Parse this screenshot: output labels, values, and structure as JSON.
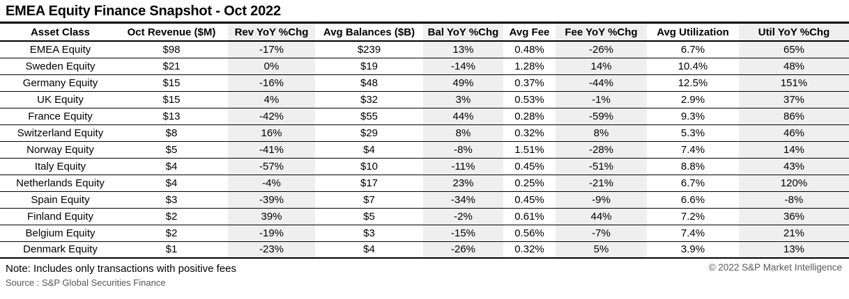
{
  "title": "EMEA Equity Finance Snapshot - Oct 2022",
  "chart_data": {
    "type": "table",
    "title": "EMEA Equity Finance Snapshot - Oct 2022",
    "columns": [
      {
        "label": "Asset Class",
        "shaded": false
      },
      {
        "label": "Oct Revenue ($M)",
        "shaded": false
      },
      {
        "label": "Rev YoY %Chg",
        "shaded": true
      },
      {
        "label": "Avg Balances ($B)",
        "shaded": false
      },
      {
        "label": "Bal YoY %Chg",
        "shaded": true
      },
      {
        "label": "Avg Fee",
        "shaded": false
      },
      {
        "label": "Fee YoY %Chg",
        "shaded": true
      },
      {
        "label": "Avg Utilization",
        "shaded": false
      },
      {
        "label": "Util YoY %Chg",
        "shaded": true
      }
    ],
    "rows": [
      [
        "EMEA Equity",
        "$98",
        "-17%",
        "$239",
        "13%",
        "0.48%",
        "-26%",
        "6.7%",
        "65%"
      ],
      [
        "Sweden Equity",
        "$21",
        "0%",
        "$19",
        "-14%",
        "1.28%",
        "14%",
        "10.4%",
        "48%"
      ],
      [
        "Germany Equity",
        "$15",
        "-16%",
        "$48",
        "49%",
        "0.37%",
        "-44%",
        "12.5%",
        "151%"
      ],
      [
        "UK Equity",
        "$15",
        "4%",
        "$32",
        "3%",
        "0.53%",
        "-1%",
        "2.9%",
        "37%"
      ],
      [
        "France Equity",
        "$13",
        "-42%",
        "$55",
        "44%",
        "0.28%",
        "-59%",
        "9.3%",
        "86%"
      ],
      [
        "Switzerland Equity",
        "$8",
        "16%",
        "$29",
        "8%",
        "0.32%",
        "8%",
        "5.3%",
        "46%"
      ],
      [
        "Norway Equity",
        "$5",
        "-41%",
        "$4",
        "-8%",
        "1.51%",
        "-28%",
        "7.4%",
        "14%"
      ],
      [
        "Italy Equity",
        "$4",
        "-57%",
        "$10",
        "-11%",
        "0.45%",
        "-51%",
        "8.8%",
        "43%"
      ],
      [
        "Netherlands Equity",
        "$4",
        "-4%",
        "$17",
        "23%",
        "0.25%",
        "-21%",
        "6.7%",
        "120%"
      ],
      [
        "Spain Equity",
        "$3",
        "-39%",
        "$7",
        "-34%",
        "0.45%",
        "-9%",
        "6.6%",
        "-8%"
      ],
      [
        "Finland Equity",
        "$2",
        "39%",
        "$5",
        "-2%",
        "0.61%",
        "44%",
        "7.2%",
        "36%"
      ],
      [
        "Belgium Equity",
        "$2",
        "-19%",
        "$3",
        "-15%",
        "0.56%",
        "-7%",
        "7.4%",
        "21%"
      ],
      [
        "Denmark Equity",
        "$1",
        "-23%",
        "$4",
        "-26%",
        "0.32%",
        "5%",
        "3.9%",
        "13%"
      ]
    ],
    "layout_hints": {
      "shaded_column_indices": [
        2,
        4,
        6,
        8
      ],
      "first_column_align": "left",
      "value_align": "center"
    }
  },
  "footnotes": {
    "note": "Note: Includes only transactions with positive fees",
    "source": "Source : S&P Global Securities Finance",
    "copyright": "© 2022 S&P Market Intelligence"
  },
  "colors": {
    "shaded_column_bg": "#efefef",
    "border": "#000000",
    "text": "#000000",
    "muted_text": "#595959"
  }
}
